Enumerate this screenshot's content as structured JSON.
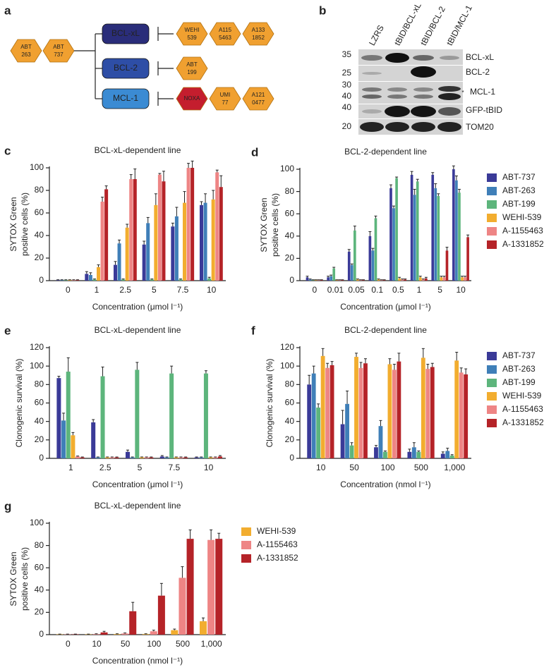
{
  "panel_a": {
    "label": "a",
    "left_drugs": [
      [
        "ABT",
        "263"
      ],
      [
        "ABT",
        "737"
      ]
    ],
    "targets": [
      {
        "name": "BCL-xL",
        "inhibitors": [
          [
            "WEHI",
            "539"
          ],
          [
            "A115",
            "5463"
          ],
          [
            "A133",
            "1852"
          ]
        ]
      },
      {
        "name": "BCL-2",
        "inhibitors": [
          [
            "ABT",
            "199"
          ]
        ]
      },
      {
        "name": "MCL-1",
        "inhibitors": [
          [
            "NOXA"
          ],
          [
            "UMI",
            "77"
          ],
          [
            "A121",
            "0477"
          ]
        ]
      }
    ]
  },
  "panel_b": {
    "label": "b",
    "lanes": [
      "LZRS",
      "tBID/BCL-xL",
      "tBID/BCL-2",
      "tBID/MCL-1"
    ],
    "markers": [
      "35",
      "25",
      "30",
      "40",
      "40",
      "20"
    ],
    "proteins": [
      "BCL-xL",
      "BCL-2",
      "MCL-1",
      "GFP-tBID",
      "TOM20"
    ],
    "asterisk": "*"
  },
  "chart_data": [
    {
      "type": "bar",
      "panel": "c",
      "title": "BCL-xL-dependent line",
      "ylabel": [
        "SYTOX Green",
        "positive cells (%)"
      ],
      "xlabel": "Concentration (μmol l⁻¹)",
      "categories": [
        "0",
        "1",
        "2.5",
        "5",
        "7.5",
        "10"
      ],
      "ylim": [
        0,
        100
      ],
      "yticks": [
        0,
        20,
        40,
        60,
        80,
        100
      ],
      "legend": false,
      "series": [
        {
          "name": "ABT-737",
          "color": "#3a3a98",
          "values": [
            0.5,
            6,
            14,
            32,
            48,
            67
          ],
          "errors": [
            0.3,
            2,
            3,
            3,
            3,
            3
          ]
        },
        {
          "name": "ABT-263",
          "color": "#3f7fb8",
          "values": [
            0.5,
            5,
            33,
            51,
            57,
            69
          ],
          "errors": [
            0.3,
            2,
            3,
            5,
            8,
            8
          ]
        },
        {
          "name": "ABT-199",
          "color": "#5db57c",
          "values": [
            0.5,
            1,
            1,
            1,
            1,
            2
          ],
          "errors": [
            0.3,
            0.5,
            0.5,
            0.5,
            0.5,
            1
          ]
        },
        {
          "name": "WEHI-539",
          "color": "#f2ad2f",
          "values": [
            0.5,
            12,
            47,
            67,
            69,
            72
          ],
          "errors": [
            0.3,
            2,
            3,
            10,
            10,
            8
          ]
        },
        {
          "name": "A-1155463",
          "color": "#ee8585",
          "values": [
            0.5,
            70,
            90,
            94,
            100,
            96
          ],
          "errors": [
            0.3,
            4,
            4,
            1,
            4,
            2
          ]
        },
        {
          "name": "A-1331852",
          "color": "#b52328",
          "values": [
            0.5,
            81,
            90,
            88,
            100,
            83
          ],
          "errors": [
            0.3,
            3,
            9,
            9,
            6,
            10
          ]
        }
      ]
    },
    {
      "type": "bar",
      "panel": "d",
      "title": "BCL-2-dependent line",
      "ylabel": [
        "SYTOX Green",
        "positive cells (%)"
      ],
      "xlabel": "Concentration (μmol l⁻¹)",
      "categories": [
        "0",
        "0.01",
        "0.05",
        "0.1",
        "0.5",
        "1",
        "5",
        "10"
      ],
      "ylim": [
        0,
        100
      ],
      "yticks": [
        0,
        20,
        40,
        60,
        80,
        100
      ],
      "legend": true,
      "series": [
        {
          "name": "ABT-737",
          "color": "#3a3a98",
          "values": [
            3,
            3,
            26,
            40,
            83,
            95,
            95,
            100
          ],
          "errors": [
            1,
            1,
            2,
            4,
            3,
            3,
            2,
            3
          ]
        },
        {
          "name": "ABT-263",
          "color": "#3f7fb8",
          "values": [
            1,
            4,
            14,
            27,
            65,
            77,
            83,
            90
          ],
          "errors": [
            0.5,
            1,
            1,
            2,
            2,
            5,
            4,
            4
          ]
        },
        {
          "name": "ABT-199",
          "color": "#5db57c",
          "values": [
            0.5,
            11,
            45,
            56,
            92,
            89,
            76,
            79
          ],
          "errors": [
            0.3,
            1,
            4,
            2,
            1,
            2,
            2,
            3
          ]
        },
        {
          "name": "WEHI-539",
          "color": "#f2ad2f",
          "values": [
            0.5,
            0.5,
            1,
            1,
            2,
            3,
            3,
            3
          ],
          "errors": [
            0.3,
            0.3,
            0.5,
            0.5,
            1,
            1,
            1,
            1
          ]
        },
        {
          "name": "A-1155463",
          "color": "#ee8585",
          "values": [
            0.5,
            0.5,
            0.5,
            0.5,
            1,
            1,
            3,
            3
          ],
          "errors": [
            0.3,
            0.3,
            0.3,
            0.3,
            0.5,
            0.5,
            1,
            1
          ]
        },
        {
          "name": "A-1331852",
          "color": "#b52328",
          "values": [
            0.5,
            0.5,
            0.5,
            0.5,
            1,
            2,
            27,
            39
          ],
          "errors": [
            0.3,
            0.3,
            0.3,
            0.3,
            0.5,
            1,
            3,
            2
          ]
        }
      ]
    },
    {
      "type": "bar",
      "panel": "e",
      "title": "BCL-xL-dependent line",
      "ylabel": [
        "Clonogenic survival (%)"
      ],
      "xlabel": "Concentration (μmol l⁻¹)",
      "categories": [
        "1",
        "2.5",
        "5",
        "7.5",
        "10"
      ],
      "ylim": [
        0,
        120
      ],
      "yticks": [
        0,
        20,
        40,
        60,
        80,
        100,
        120
      ],
      "legend": false,
      "series": [
        {
          "name": "ABT-737",
          "color": "#3a3a98",
          "values": [
            87,
            39,
            7,
            2,
            1
          ],
          "errors": [
            2,
            3,
            2,
            1,
            0.5
          ]
        },
        {
          "name": "ABT-263",
          "color": "#3f7fb8",
          "values": [
            41,
            1,
            1,
            1,
            1
          ],
          "errors": [
            8,
            0.5,
            0.5,
            0.5,
            0.5
          ]
        },
        {
          "name": "ABT-199",
          "color": "#5db57c",
          "values": [
            94,
            89,
            96,
            92,
            92
          ],
          "errors": [
            15,
            10,
            8,
            8,
            3
          ]
        },
        {
          "name": "WEHI-539",
          "color": "#f2ad2f",
          "values": [
            25,
            1,
            1,
            1,
            1
          ],
          "errors": [
            3,
            0.5,
            0.5,
            0.5,
            0.5
          ]
        },
        {
          "name": "A-1155463",
          "color": "#ee8585",
          "values": [
            2,
            1,
            1,
            1,
            1
          ],
          "errors": [
            0.5,
            0.5,
            0.5,
            0.5,
            0.5
          ]
        },
        {
          "name": "A-1331852",
          "color": "#b52328",
          "values": [
            1,
            1,
            1,
            1,
            2
          ],
          "errors": [
            0.5,
            0.5,
            0.5,
            0.5,
            1
          ]
        }
      ]
    },
    {
      "type": "bar",
      "panel": "f",
      "title": "BCL-2-dependent line",
      "ylabel": [
        "Clonogenic survival (%)"
      ],
      "xlabel": "Concentration (nmol l⁻¹)",
      "categories": [
        "10",
        "50",
        "100",
        "500",
        "1,000"
      ],
      "ylim": [
        0,
        120
      ],
      "yticks": [
        0,
        20,
        40,
        60,
        80,
        100,
        120
      ],
      "legend": true,
      "series": [
        {
          "name": "ABT-737",
          "color": "#3a3a98",
          "values": [
            80,
            37,
            12,
            7,
            5
          ],
          "errors": [
            10,
            15,
            2,
            3,
            2
          ]
        },
        {
          "name": "ABT-263",
          "color": "#3f7fb8",
          "values": [
            92,
            59,
            35,
            12,
            8
          ],
          "errors": [
            8,
            14,
            6,
            5,
            3
          ]
        },
        {
          "name": "ABT-199",
          "color": "#5db57c",
          "values": [
            55,
            14,
            7,
            7,
            3
          ],
          "errors": [
            4,
            3,
            1,
            1,
            1
          ]
        },
        {
          "name": "WEHI-539",
          "color": "#f2ad2f",
          "values": [
            111,
            110,
            102,
            109,
            106
          ],
          "errors": [
            8,
            4,
            6,
            10,
            9
          ]
        },
        {
          "name": "A-1155463",
          "color": "#ee8585",
          "values": [
            98,
            98,
            96,
            97,
            93
          ],
          "errors": [
            5,
            6,
            6,
            5,
            5
          ]
        },
        {
          "name": "A-1331852",
          "color": "#b52328",
          "values": [
            101,
            103,
            105,
            99,
            91
          ],
          "errors": [
            4,
            5,
            9,
            4,
            6
          ]
        }
      ]
    },
    {
      "type": "bar",
      "panel": "g",
      "title": "BCL-xL-dependent line",
      "ylabel": [
        "SYTOX Green",
        "positive cells (%)"
      ],
      "xlabel": "Concentration (nmol l⁻¹)",
      "categories": [
        "0",
        "10",
        "50",
        "100",
        "500",
        "1,000"
      ],
      "ylim": [
        0,
        100
      ],
      "yticks": [
        0,
        20,
        40,
        60,
        80,
        100
      ],
      "legend": true,
      "series": [
        {
          "name": "WEHI-539",
          "color": "#f2ad2f",
          "values": [
            0.3,
            0.3,
            0.5,
            0.5,
            4,
            12
          ],
          "errors": [
            0.2,
            0.2,
            0.3,
            0.3,
            1,
            3
          ]
        },
        {
          "name": "A-1155463",
          "color": "#ee8585",
          "values": [
            0.3,
            0.5,
            1,
            3,
            51,
            85
          ],
          "errors": [
            0.2,
            0.3,
            0.5,
            1,
            10,
            9
          ]
        },
        {
          "name": "A-1331852",
          "color": "#b52328",
          "values": [
            0.3,
            2,
            21,
            35,
            86,
            86
          ],
          "errors": [
            0.2,
            1,
            8,
            11,
            8,
            5
          ]
        }
      ]
    }
  ]
}
